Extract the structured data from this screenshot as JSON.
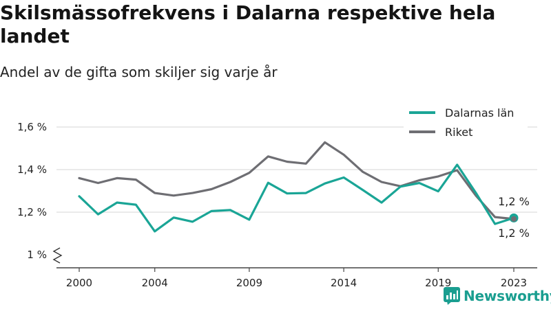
{
  "title": "Skilsmässofrekvens i Dalarna respektive hela landet",
  "subtitle": "Andel av de gifta som skiljer sig varje år",
  "brand": {
    "name": "Newsworthy",
    "icon": "newsworthy-logo-icon"
  },
  "colors": {
    "series_1": "#1aa596",
    "series_2": "#6e6e73",
    "grid": "#dddddd",
    "axis": "#444444"
  },
  "chart_data": {
    "type": "line",
    "x": [
      2000,
      2001,
      2002,
      2003,
      2004,
      2005,
      2006,
      2007,
      2008,
      2009,
      2010,
      2011,
      2012,
      2013,
      2014,
      2015,
      2016,
      2017,
      2018,
      2019,
      2020,
      2021,
      2022,
      2023
    ],
    "series": [
      {
        "name": "Dalarnas län",
        "color": "#1aa596",
        "values": [
          1.275,
          1.19,
          1.245,
          1.235,
          1.11,
          1.175,
          1.155,
          1.205,
          1.21,
          1.165,
          1.338,
          1.288,
          1.29,
          1.335,
          1.363,
          1.305,
          1.245,
          1.32,
          1.337,
          1.298,
          1.423,
          1.29,
          1.145,
          1.173
        ]
      },
      {
        "name": "Riket",
        "color": "#6e6e73",
        "values": [
          1.36,
          1.337,
          1.36,
          1.353,
          1.29,
          1.278,
          1.29,
          1.308,
          1.342,
          1.385,
          1.462,
          1.437,
          1.428,
          1.528,
          1.47,
          1.39,
          1.342,
          1.322,
          1.35,
          1.368,
          1.397,
          1.277,
          1.177,
          1.168
        ]
      }
    ],
    "xticks": [
      2000,
      2004,
      2009,
      2014,
      2019,
      2023
    ],
    "xtick_labels": [
      "2000",
      "2004",
      "2009",
      "2014",
      "2019",
      "2023"
    ],
    "yticks": [
      1.0,
      1.2,
      1.4,
      1.6
    ],
    "ytick_labels": [
      "1 %",
      "1,2 %",
      "1,4 %",
      "1,6 %"
    ],
    "ylim": [
      1.0,
      1.6
    ],
    "xlim": [
      2000,
      2023
    ],
    "grid": true,
    "y_axis_break": true,
    "legend_position": "top-right",
    "end_labels": [
      "1,2 %",
      "1,2 %"
    ],
    "xlabel": "",
    "ylabel": ""
  }
}
